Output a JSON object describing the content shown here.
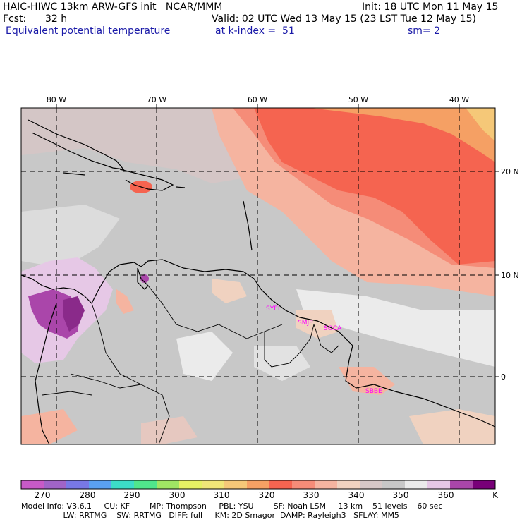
{
  "header": {
    "model_line": "HAIC-HIWC 13km ARW-GFS init   NCAR/MMM",
    "init_line": "Init: 18 UTC Mon 11 May 15",
    "fcst_label": "Fcst:",
    "fcst_value": "32 h",
    "valid_line": "Valid: 02 UTC Wed 13 May 15 (23 LST Tue 12 May 15)",
    "field_name": "Equivalent potential temperature",
    "level": "at k-index =  51",
    "smoothing": "sm= 2"
  },
  "map": {
    "lon_labels": [
      "80 W",
      "70 W",
      "60 W",
      "50 W",
      "40 W"
    ],
    "lat_labels": [
      "20 N",
      "10 N",
      "0"
    ],
    "stations": [
      "SYEL",
      "SMJP",
      "SOCA",
      "SBBE"
    ],
    "station_color": "#ff00ff"
  },
  "colorbar": {
    "ticks": [
      "270",
      "280",
      "290",
      "300",
      "310",
      "320",
      "330",
      "340",
      "350",
      "360"
    ],
    "unit": "K",
    "colors": [
      "#c85ac8",
      "#a064c8",
      "#7878e6",
      "#5aa0f0",
      "#3cdcc8",
      "#50e68c",
      "#a0e664",
      "#e6f064",
      "#f0e678",
      "#f5c878",
      "#f5a064",
      "#f56450",
      "#f58c78",
      "#f5b4a0",
      "#f0d2c0",
      "#d7c8c8",
      "#c8c8c8",
      "#ebebeb",
      "#e6c8e6",
      "#aa46aa",
      "#780078"
    ]
  },
  "footer": {
    "line1": "Model Info: V3.6.1     CU: KF        MP: Thompson     PBL: YSU        SF: Noah LSM     13 km    51 levels    60 sec",
    "line2": "                 LW: RRTMG    SW: RRTMG   DIFF: full     KM: 2D Smagor  DAMP: Rayleigh3   SFLAY: MM5"
  }
}
